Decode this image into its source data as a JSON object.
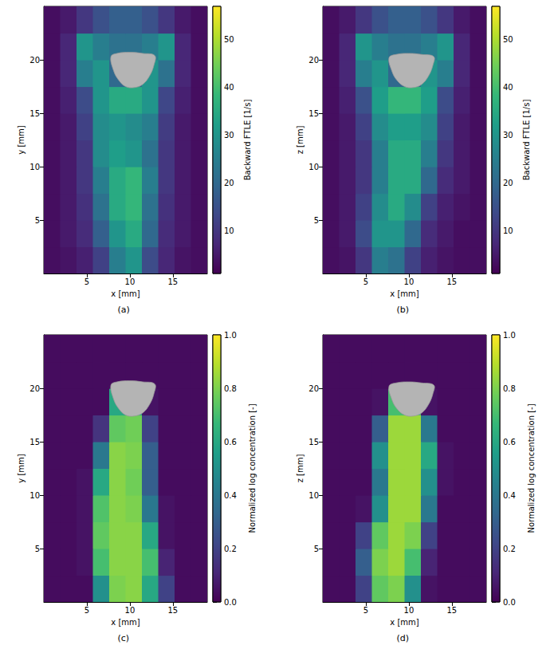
{
  "chart_data": [
    {
      "type": "heatmap",
      "label": "(a)",
      "xlabel": "x [mm]",
      "ylabel": "y [mm]",
      "color": "viridis",
      "xlim": [
        0,
        19
      ],
      "ylim": [
        0,
        25
      ],
      "xticks": [
        5,
        10,
        15
      ],
      "yticks": [
        5,
        10,
        15,
        20
      ],
      "colorbar": {
        "label": "Backward FTLE [1/s]",
        "range": [
          1,
          57
        ],
        "ticks": [
          10,
          20,
          30,
          40,
          50
        ]
      },
      "cells": {
        "x_edges": [
          0,
          1.9,
          3.8,
          5.7,
          7.6,
          9.5,
          11.4,
          13.3,
          15.2,
          17.1,
          19
        ],
        "y_edges": [
          0,
          2.5,
          5,
          7.5,
          10,
          12.5,
          15,
          17.5,
          20,
          22.5,
          25
        ],
        "values": [
          [
            3,
            4,
            6,
            12,
            25,
            30,
            14,
            7,
            4,
            3
          ],
          [
            3,
            5,
            8,
            18,
            30,
            35,
            20,
            8,
            5,
            3
          ],
          [
            3,
            5,
            9,
            22,
            35,
            38,
            22,
            9,
            5,
            3
          ],
          [
            3,
            5,
            10,
            25,
            35,
            38,
            25,
            10,
            5,
            3
          ],
          [
            3,
            5,
            10,
            28,
            32,
            30,
            22,
            10,
            5,
            3
          ],
          [
            3,
            5,
            12,
            28,
            30,
            28,
            25,
            11,
            5,
            3
          ],
          [
            3,
            6,
            14,
            30,
            35,
            35,
            30,
            13,
            6,
            3
          ],
          [
            3,
            7,
            25,
            30,
            20,
            20,
            30,
            22,
            7,
            3
          ],
          [
            3,
            7,
            30,
            25,
            22,
            22,
            25,
            30,
            7,
            3
          ],
          [
            3,
            5,
            10,
            15,
            18,
            18,
            15,
            10,
            5,
            3
          ]
        ]
      },
      "body": {
        "x": [
          7.8,
          8.5,
          10,
          11.5,
          12.9,
          12.8,
          12.3,
          11.5,
          10.5,
          9.5,
          8.7,
          8.1
        ],
        "y": [
          20.3,
          20.6,
          20.7,
          20.6,
          20.4,
          19.5,
          18.5,
          17.7,
          17.4,
          17.5,
          18.1,
          19.0
        ]
      }
    },
    {
      "type": "heatmap",
      "label": "(b)",
      "xlabel": "x [mm]",
      "ylabel": "z [mm]",
      "color": "viridis",
      "xlim": [
        0,
        19
      ],
      "ylim": [
        0,
        25
      ],
      "xticks": [
        5,
        10,
        15
      ],
      "yticks": [
        5,
        10,
        15,
        20
      ],
      "colorbar": {
        "label": "Backward FTLE [1/s]",
        "range": [
          1,
          57
        ],
        "ticks": [
          10,
          20,
          30,
          40,
          50
        ]
      },
      "cells": {
        "x_edges": [
          0,
          1.9,
          3.8,
          5.7,
          7.6,
          9.5,
          11.4,
          13.3,
          15.2,
          17.1,
          19
        ],
        "y_edges": [
          0,
          2.5,
          5,
          7.5,
          10,
          12.5,
          15,
          17.5,
          20,
          22.5,
          25
        ],
        "values": [
          [
            3,
            4,
            10,
            25,
            22,
            12,
            6,
            4,
            3,
            3
          ],
          [
            3,
            5,
            14,
            30,
            30,
            20,
            8,
            5,
            3,
            3
          ],
          [
            3,
            5,
            12,
            28,
            35,
            28,
            12,
            6,
            4,
            3
          ],
          [
            3,
            5,
            10,
            25,
            35,
            35,
            20,
            8,
            5,
            3
          ],
          [
            3,
            5,
            10,
            25,
            35,
            35,
            25,
            10,
            5,
            3
          ],
          [
            3,
            5,
            12,
            28,
            32,
            32,
            28,
            12,
            5,
            3
          ],
          [
            3,
            6,
            15,
            32,
            38,
            38,
            32,
            14,
            6,
            3
          ],
          [
            3,
            7,
            25,
            30,
            20,
            20,
            30,
            25,
            7,
            3
          ],
          [
            3,
            7,
            30,
            25,
            22,
            22,
            25,
            30,
            7,
            3
          ],
          [
            3,
            5,
            10,
            15,
            18,
            18,
            15,
            10,
            5,
            3
          ]
        ]
      },
      "body": {
        "x": [
          7.7,
          8.5,
          10,
          11.5,
          12.9,
          12.8,
          12.3,
          11.5,
          10.5,
          9.5,
          8.6,
          8.0
        ],
        "y": [
          20.2,
          20.5,
          20.6,
          20.5,
          20.3,
          19.5,
          18.5,
          17.7,
          17.4,
          17.5,
          18.1,
          19.0
        ]
      }
    },
    {
      "type": "heatmap",
      "label": "(c)",
      "xlabel": "x [mm]",
      "ylabel": "y [mm]",
      "color": "viridis",
      "xlim": [
        0,
        19
      ],
      "ylim": [
        0,
        25
      ],
      "xticks": [
        5,
        10,
        15
      ],
      "yticks": [
        5,
        10,
        15,
        20
      ],
      "colorbar": {
        "label": "Normalized log concentration [-]",
        "range": [
          0,
          1
        ],
        "ticks": [
          {
            "value": 0,
            "label": "0.0"
          },
          {
            "value": 0.2,
            "label": "0.2"
          },
          {
            "value": 0.4,
            "label": "0.4"
          },
          {
            "value": 0.6,
            "label": "0.6"
          },
          {
            "value": 0.8,
            "label": "0.8"
          },
          {
            "value": 1,
            "label": "1.0"
          }
        ]
      },
      "cells": {
        "x_edges": [
          0,
          1.9,
          3.8,
          5.7,
          7.6,
          9.5,
          11.4,
          13.3,
          15.2,
          17.1,
          19
        ],
        "y_edges": [
          0,
          2.5,
          5,
          7.5,
          10,
          12.5,
          15,
          17.5,
          20,
          22.5,
          25
        ],
        "values": [
          [
            0.03,
            0.03,
            0.03,
            0.5,
            0.8,
            0.82,
            0.6,
            0.2,
            0.03,
            0.03
          ],
          [
            0.03,
            0.03,
            0.05,
            0.7,
            0.82,
            0.82,
            0.7,
            0.1,
            0.03,
            0.03
          ],
          [
            0.03,
            0.03,
            0.05,
            0.75,
            0.82,
            0.82,
            0.6,
            0.05,
            0.03,
            0.03
          ],
          [
            0.03,
            0.03,
            0.05,
            0.72,
            0.82,
            0.8,
            0.4,
            0.05,
            0.03,
            0.03
          ],
          [
            0.03,
            0.03,
            0.05,
            0.6,
            0.82,
            0.78,
            0.3,
            0.03,
            0.03,
            0.03
          ],
          [
            0.03,
            0.03,
            0.03,
            0.4,
            0.82,
            0.8,
            0.3,
            0.03,
            0.03,
            0.03
          ],
          [
            0.03,
            0.03,
            0.03,
            0.15,
            0.75,
            0.78,
            0.2,
            0.03,
            0.03,
            0.03
          ],
          [
            0.03,
            0.03,
            0.03,
            0.03,
            0.6,
            0.6,
            0.05,
            0.03,
            0.03,
            0.03
          ],
          [
            0.03,
            0.03,
            0.03,
            0.03,
            0.03,
            0.03,
            0.03,
            0.03,
            0.03,
            0.03
          ],
          [
            0.03,
            0.03,
            0.03,
            0.03,
            0.03,
            0.03,
            0.03,
            0.03,
            0.03,
            0.03
          ]
        ]
      },
      "body": {
        "x": [
          7.8,
          8.5,
          10,
          11.5,
          12.9,
          12.8,
          12.3,
          11.5,
          10.5,
          9.5,
          8.7,
          8.1
        ],
        "y": [
          20.3,
          20.6,
          20.7,
          20.6,
          20.4,
          19.5,
          18.5,
          17.7,
          17.4,
          17.5,
          18.1,
          19.0
        ]
      }
    },
    {
      "type": "heatmap",
      "label": "(d)",
      "xlabel": "x [mm]",
      "ylabel": "z [mm]",
      "color": "viridis",
      "xlim": [
        0,
        19
      ],
      "ylim": [
        0,
        25
      ],
      "xticks": [
        5,
        10,
        15
      ],
      "yticks": [
        5,
        10,
        15,
        20
      ],
      "colorbar": {
        "label": "Normalized log concentration [-]",
        "range": [
          0,
          1
        ],
        "ticks": [
          {
            "value": 0,
            "label": "0.0"
          },
          {
            "value": 0.2,
            "label": "0.2"
          },
          {
            "value": 0.4,
            "label": "0.4"
          },
          {
            "value": 0.6,
            "label": "0.6"
          },
          {
            "value": 0.8,
            "label": "0.8"
          },
          {
            "value": 1,
            "label": "1.0"
          }
        ]
      },
      "cells": {
        "x_edges": [
          0,
          1.9,
          3.8,
          5.7,
          7.6,
          9.5,
          11.4,
          13.3,
          15.2,
          17.1,
          19
        ],
        "y_edges": [
          0,
          2.5,
          5,
          7.5,
          10,
          12.5,
          15,
          17.5,
          20,
          22.5,
          25
        ],
        "values": [
          [
            0.03,
            0.03,
            0.2,
            0.75,
            0.8,
            0.5,
            0.05,
            0.03,
            0.03,
            0.03
          ],
          [
            0.03,
            0.03,
            0.3,
            0.8,
            0.85,
            0.7,
            0.1,
            0.03,
            0.03,
            0.03
          ],
          [
            0.03,
            0.03,
            0.2,
            0.75,
            0.85,
            0.8,
            0.2,
            0.03,
            0.03,
            0.03
          ],
          [
            0.03,
            0.03,
            0.05,
            0.5,
            0.85,
            0.85,
            0.4,
            0.03,
            0.03,
            0.03
          ],
          [
            0.03,
            0.03,
            0.03,
            0.4,
            0.85,
            0.85,
            0.5,
            0.05,
            0.03,
            0.03
          ],
          [
            0.03,
            0.03,
            0.03,
            0.5,
            0.85,
            0.85,
            0.6,
            0.05,
            0.03,
            0.03
          ],
          [
            0.03,
            0.03,
            0.03,
            0.3,
            0.85,
            0.85,
            0.4,
            0.03,
            0.03,
            0.03
          ],
          [
            0.03,
            0.03,
            0.03,
            0.05,
            0.7,
            0.7,
            0.05,
            0.03,
            0.03,
            0.03
          ],
          [
            0.03,
            0.03,
            0.03,
            0.03,
            0.03,
            0.03,
            0.03,
            0.03,
            0.03,
            0.03
          ],
          [
            0.03,
            0.03,
            0.03,
            0.03,
            0.03,
            0.03,
            0.03,
            0.03,
            0.03,
            0.03
          ]
        ]
      },
      "body": {
        "x": [
          7.7,
          8.5,
          10,
          11.5,
          12.9,
          12.8,
          12.3,
          11.5,
          10.5,
          9.5,
          8.6,
          8.0
        ],
        "y": [
          20.2,
          20.5,
          20.6,
          20.5,
          20.3,
          19.5,
          18.5,
          17.7,
          17.4,
          17.5,
          18.1,
          19.0
        ]
      }
    }
  ]
}
